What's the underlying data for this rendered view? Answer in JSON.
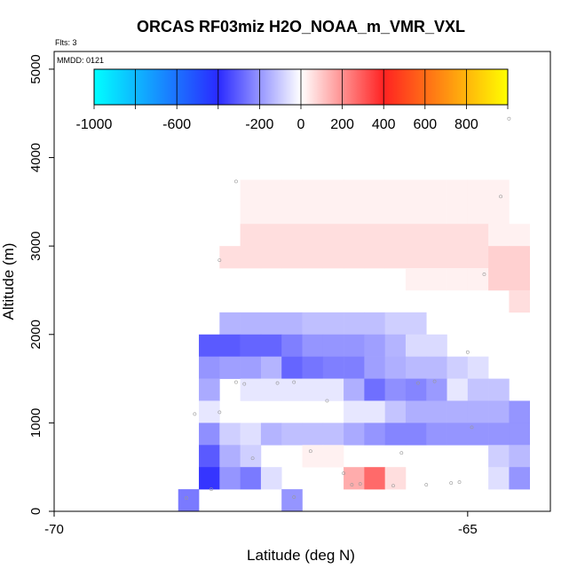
{
  "chart_data": {
    "type": "heatmap",
    "title": "ORCAS RF03miz H2O_NOAA_m_VMR_VXL",
    "flights_label": "Flts: 3",
    "date_label": "MMDD: 0121",
    "xlabel": "Latitude (deg N)",
    "ylabel": "Altitude (m)",
    "xlim": [
      -70,
      -64
    ],
    "ylim": [
      0,
      5200
    ],
    "xticks": [
      -70,
      -65
    ],
    "xtick_labels": [
      "-70",
      "-65"
    ],
    "yticks": [
      0,
      1000,
      2000,
      3000,
      4000,
      5000
    ],
    "ytick_labels": [
      "0",
      "1000",
      "2000",
      "3000",
      "4000",
      "5000"
    ],
    "colorbar": {
      "range": [
        -1000,
        1000
      ],
      "ticks": [
        -1000,
        -600,
        -200,
        0,
        200,
        400,
        600,
        800
      ],
      "tick_labels": [
        "-1000",
        "-600",
        "-200",
        "0",
        "200",
        "400",
        "600",
        "800"
      ],
      "stops": [
        {
          "value": -1000,
          "color": "#00ffff"
        },
        {
          "value": -400,
          "color": "#2a2aff"
        },
        {
          "value": 0,
          "color": "#ffffff"
        },
        {
          "value": 400,
          "color": "#ff2222"
        },
        {
          "value": 1000,
          "color": "#ffff00"
        }
      ]
    },
    "cell_width_deg": 0.25,
    "cell_height_m": 250,
    "cell_rows": [
      {
        "lat_start": -69.0,
        "alt": 3625,
        "values": [
          0,
          0,
          0,
          0,
          0,
          25,
          25,
          25,
          25,
          25,
          25,
          25,
          25,
          25,
          25,
          25,
          25,
          25,
          0
        ]
      },
      {
        "lat_start": -69.0,
        "alt": 3375,
        "values": [
          0,
          0,
          0,
          0,
          0,
          25,
          25,
          25,
          25,
          25,
          25,
          25,
          25,
          25,
          25,
          25,
          25,
          25,
          0
        ]
      },
      {
        "lat_start": -69.0,
        "alt": 3125,
        "values": [
          0,
          0,
          0,
          0,
          0,
          60,
          60,
          60,
          60,
          60,
          60,
          60,
          60,
          60,
          60,
          60,
          60,
          25,
          25
        ]
      },
      {
        "lat_start": -69.0,
        "alt": 2875,
        "values": [
          0,
          0,
          0,
          0,
          60,
          60,
          60,
          60,
          60,
          60,
          60,
          60,
          60,
          60,
          60,
          60,
          60,
          85,
          85
        ]
      },
      {
        "lat_start": -69.0,
        "alt": 2625,
        "values": [
          0,
          0,
          0,
          0,
          0,
          0,
          0,
          0,
          0,
          0,
          0,
          0,
          0,
          25,
          25,
          25,
          25,
          85,
          85
        ]
      },
      {
        "lat_start": -69.0,
        "alt": 2375,
        "values": [
          0,
          0,
          0,
          0,
          0,
          0,
          0,
          0,
          0,
          0,
          0,
          0,
          0,
          0,
          0,
          0,
          0,
          0,
          60
        ]
      },
      {
        "lat_start": -69.0,
        "alt": 2125,
        "values": [
          0,
          0,
          0,
          0,
          -140,
          -140,
          -140,
          -140,
          -120,
          -120,
          -120,
          -120,
          -90,
          -90,
          0,
          0,
          0,
          0,
          0
        ]
      },
      {
        "lat_start": -69.0,
        "alt": 1875,
        "values": [
          0,
          0,
          0,
          -310,
          -310,
          -290,
          -290,
          -240,
          -200,
          -200,
          -200,
          -180,
          -140,
          -70,
          -70,
          0,
          0,
          0,
          0
        ]
      },
      {
        "lat_start": -69.0,
        "alt": 1625,
        "values": [
          0,
          0,
          0,
          -200,
          -180,
          -180,
          -140,
          -290,
          -260,
          -240,
          -240,
          -180,
          -150,
          -130,
          -130,
          -90,
          -60,
          0,
          0
        ]
      },
      {
        "lat_start": -69.0,
        "alt": 1375,
        "values": [
          0,
          0,
          0,
          -160,
          0,
          -45,
          -45,
          -45,
          -45,
          -45,
          -150,
          -270,
          -210,
          -230,
          -190,
          -45,
          -110,
          -110,
          0
        ]
      },
      {
        "lat_start": -69.0,
        "alt": 1125,
        "values": [
          0,
          0,
          0,
          -45,
          0,
          0,
          0,
          0,
          0,
          0,
          -45,
          -45,
          -110,
          -150,
          -150,
          -150,
          -150,
          -150,
          -200
        ]
      },
      {
        "lat_start": -69.0,
        "alt": 875,
        "values": [
          0,
          0,
          0,
          -210,
          -90,
          -60,
          -140,
          -120,
          -120,
          -120,
          -160,
          -200,
          -230,
          -230,
          -200,
          -200,
          -200,
          -200,
          -200
        ]
      },
      {
        "lat_start": -69.0,
        "alt": 625,
        "values": [
          0,
          0,
          0,
          -310,
          -150,
          -90,
          0,
          0,
          25,
          25,
          0,
          0,
          0,
          0,
          0,
          0,
          0,
          -90,
          -130
        ]
      },
      {
        "lat_start": -69.0,
        "alt": 375,
        "values": [
          0,
          0,
          0,
          -380,
          -200,
          -250,
          -60,
          0,
          0,
          0,
          150,
          270,
          60,
          0,
          0,
          0,
          0,
          -60,
          -200
        ]
      },
      {
        "lat_start": -69.0,
        "alt": 125,
        "values": [
          0,
          0,
          -250,
          0,
          0,
          0,
          0,
          -200,
          0,
          0,
          0,
          0,
          0,
          0,
          0,
          0,
          0,
          0,
          0
        ]
      }
    ],
    "sample_points": [
      [
        -68.4,
        150
      ],
      [
        -68.1,
        250
      ],
      [
        -67.1,
        160
      ],
      [
        -66.4,
        300
      ],
      [
        -66.3,
        310
      ],
      [
        -65.9,
        290
      ],
      [
        -65.5,
        300
      ],
      [
        -65.2,
        320
      ],
      [
        -65.1,
        330
      ],
      [
        -67.6,
        600
      ],
      [
        -66.9,
        680
      ],
      [
        -64.95,
        950
      ],
      [
        -68.3,
        1100
      ],
      [
        -68.0,
        1120
      ],
      [
        -66.7,
        1250
      ],
      [
        -67.8,
        1460
      ],
      [
        -67.7,
        1440
      ],
      [
        -67.3,
        1450
      ],
      [
        -67.1,
        1460
      ],
      [
        -65.6,
        1450
      ],
      [
        -65.4,
        1470
      ],
      [
        -65.0,
        1800
      ],
      [
        -64.8,
        2680
      ],
      [
        -68.0,
        2840
      ],
      [
        -67.8,
        3730
      ],
      [
        -64.6,
        3560
      ],
      [
        -64.5,
        4440
      ],
      [
        -65.8,
        660
      ],
      [
        -66.5,
        430
      ]
    ]
  }
}
